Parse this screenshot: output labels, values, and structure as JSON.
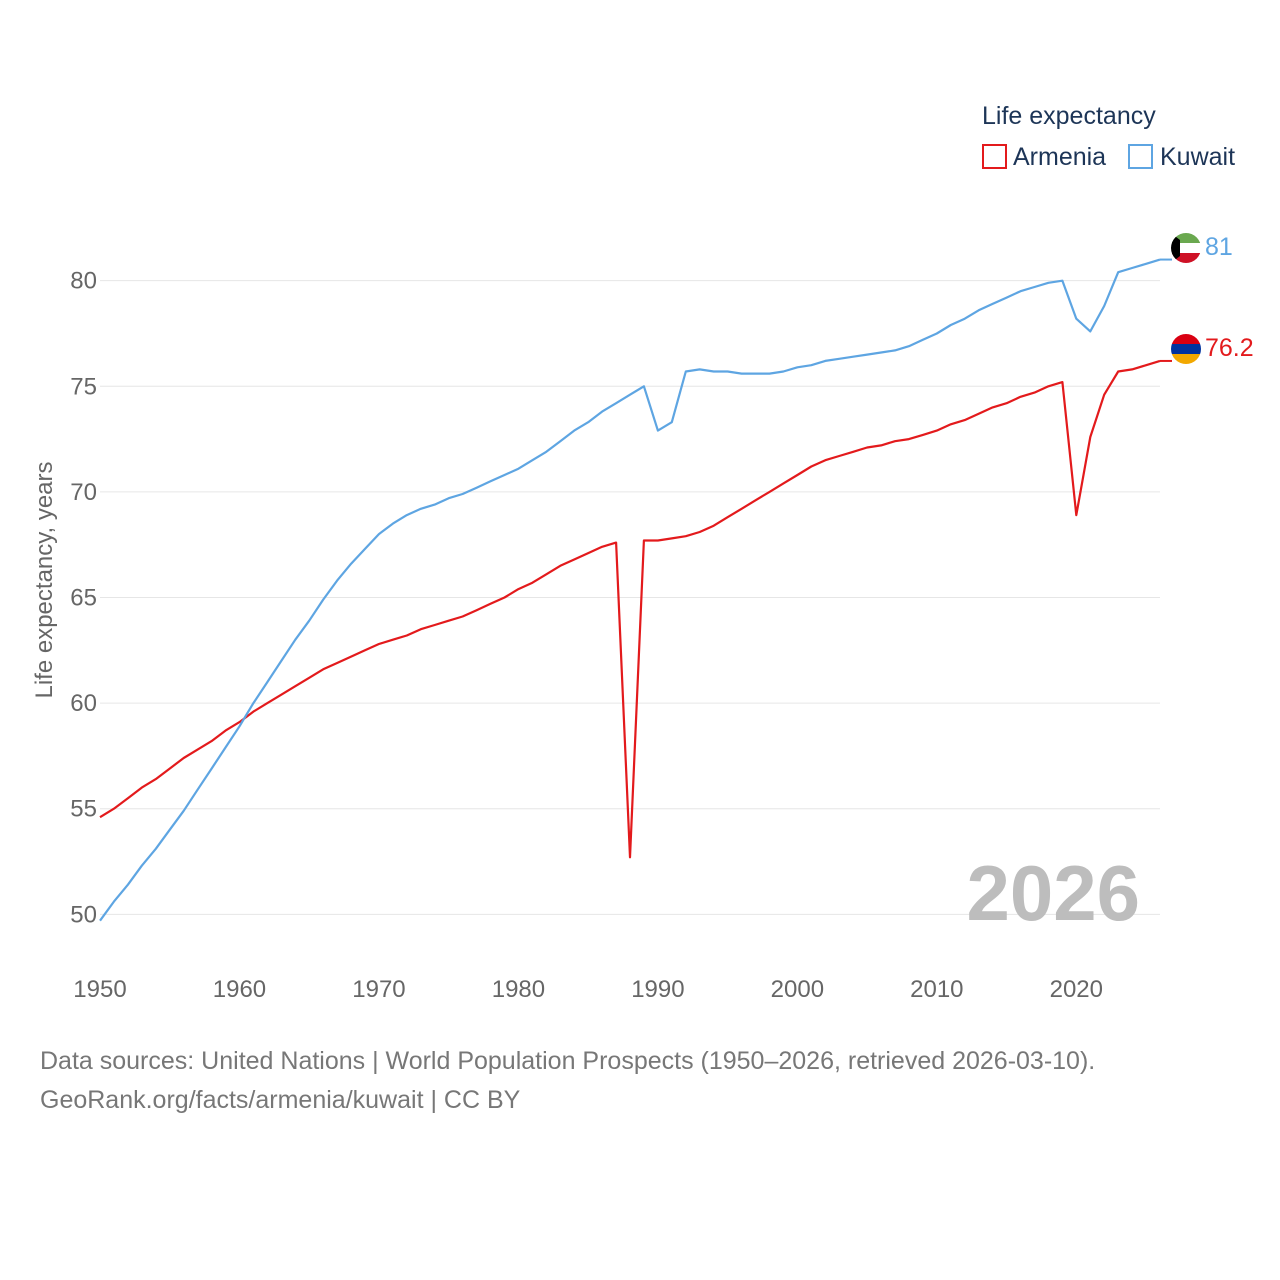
{
  "chart_data": {
    "type": "line",
    "title": "",
    "legend_title": "Life expectancy",
    "ylabel": "Life expectancy, years",
    "xlabel": "",
    "xlim": [
      1950,
      2026
    ],
    "ylim": [
      48.5,
      81.5
    ],
    "x_ticks": [
      1950,
      1960,
      1970,
      1980,
      1990,
      2000,
      2010,
      2020
    ],
    "y_ticks": [
      50,
      55,
      60,
      65,
      70,
      75,
      80
    ],
    "year_label": "2026",
    "x": [
      1950,
      1951,
      1952,
      1953,
      1954,
      1955,
      1956,
      1957,
      1958,
      1959,
      1960,
      1961,
      1962,
      1963,
      1964,
      1965,
      1966,
      1967,
      1968,
      1969,
      1970,
      1971,
      1972,
      1973,
      1974,
      1975,
      1976,
      1977,
      1978,
      1979,
      1980,
      1981,
      1982,
      1983,
      1984,
      1985,
      1986,
      1987,
      1988,
      1989,
      1990,
      1991,
      1992,
      1993,
      1994,
      1995,
      1996,
      1997,
      1998,
      1999,
      2000,
      2001,
      2002,
      2003,
      2004,
      2005,
      2006,
      2007,
      2008,
      2009,
      2010,
      2011,
      2012,
      2013,
      2014,
      2015,
      2016,
      2017,
      2018,
      2019,
      2020,
      2021,
      2022,
      2023,
      2024,
      2025,
      2026
    ],
    "series": [
      {
        "name": "Armenia",
        "color": "#e31a1c",
        "end_label": "76.2",
        "values": [
          54.6,
          55.0,
          55.5,
          56.0,
          56.4,
          56.9,
          57.4,
          57.8,
          58.2,
          58.7,
          59.1,
          59.6,
          60.0,
          60.4,
          60.8,
          61.2,
          61.6,
          61.9,
          62.2,
          62.5,
          62.8,
          63.0,
          63.2,
          63.5,
          63.7,
          63.9,
          64.1,
          64.4,
          64.7,
          65.0,
          65.4,
          65.7,
          66.1,
          66.5,
          66.8,
          67.1,
          67.4,
          67.6,
          52.7,
          67.7,
          67.7,
          67.8,
          67.9,
          68.1,
          68.4,
          68.8,
          69.2,
          69.6,
          70.0,
          70.4,
          70.8,
          71.2,
          71.5,
          71.7,
          71.9,
          72.1,
          72.2,
          72.4,
          72.5,
          72.7,
          72.9,
          73.2,
          73.4,
          73.7,
          74.0,
          74.2,
          74.5,
          74.7,
          75.0,
          75.2,
          68.9,
          72.6,
          74.6,
          75.7,
          75.8,
          76.0,
          76.2
        ]
      },
      {
        "name": "Kuwait",
        "color": "#5ea5e2",
        "end_label": "81",
        "values": [
          49.7,
          50.6,
          51.4,
          52.3,
          53.1,
          54.0,
          54.9,
          55.9,
          56.9,
          57.9,
          58.9,
          60.0,
          61.0,
          62.0,
          63.0,
          63.9,
          64.9,
          65.8,
          66.6,
          67.3,
          68.0,
          68.5,
          68.9,
          69.2,
          69.4,
          69.7,
          69.9,
          70.2,
          70.5,
          70.8,
          71.1,
          71.5,
          71.9,
          72.4,
          72.9,
          73.3,
          73.8,
          74.2,
          74.6,
          75.0,
          72.9,
          73.3,
          75.7,
          75.8,
          75.7,
          75.7,
          75.6,
          75.6,
          75.6,
          75.7,
          75.9,
          76.0,
          76.2,
          76.3,
          76.4,
          76.5,
          76.6,
          76.7,
          76.9,
          77.2,
          77.5,
          77.9,
          78.2,
          78.6,
          78.9,
          79.2,
          79.5,
          79.7,
          79.9,
          80.0,
          78.2,
          77.6,
          78.8,
          80.4,
          80.6,
          80.8,
          81.0
        ]
      }
    ]
  },
  "source": {
    "line1": "Data sources: United Nations | World Population Prospects (1950–2026, retrieved 2026-03-10).",
    "line2": "GeoRank.org/facts/armenia/kuwait | CC BY"
  },
  "flags": {
    "armenia": [
      "#d90012",
      "#0033a0",
      "#f2a800"
    ],
    "kuwait": [
      "#6aa84f",
      "#ffffff",
      "#ce1126",
      "#000000"
    ]
  }
}
